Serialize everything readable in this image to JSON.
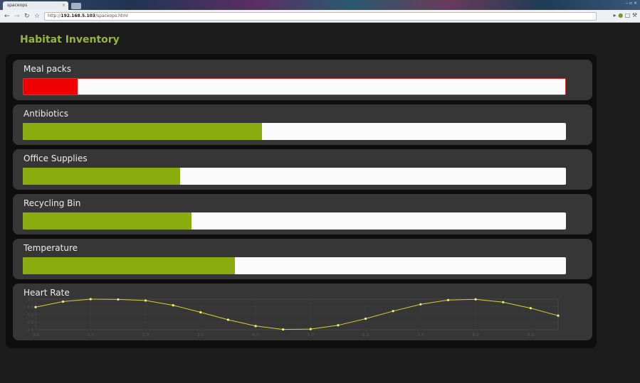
{
  "browser": {
    "tab_title": "spaceops",
    "tab_close": "×",
    "url_prefix": "http://",
    "url_host": "192.168.5.103",
    "url_path": "/spaceops.html",
    "window_controls": "– ▫ ×"
  },
  "page": {
    "title": "Habitat Inventory"
  },
  "colors": {
    "ok": "#8bac0e",
    "alert": "#f00000",
    "accent_title": "#97b53c",
    "line": "#d4d423"
  },
  "gauges": [
    {
      "label": "Meal packs",
      "level_pct": 10,
      "status": "alert"
    },
    {
      "label": "Antibiotics",
      "level_pct": 44,
      "status": "ok"
    },
    {
      "label": "Office Supplies",
      "level_pct": 29,
      "status": "ok"
    },
    {
      "label": "Recycling Bin",
      "level_pct": 31,
      "status": "ok"
    },
    {
      "label": "Temperature",
      "level_pct": 39,
      "status": "ok"
    }
  ],
  "heart_rate": {
    "label": "Heart Rate",
    "chart_data": {
      "type": "line",
      "x": [
        0,
        0.5,
        1.0,
        1.5,
        2.0,
        2.5,
        3.0,
        3.5,
        4.0,
        4.5,
        5.0,
        5.5,
        6.0,
        6.5,
        7.0,
        7.5,
        8.0,
        8.5,
        9.0,
        9.5
      ],
      "y": [
        0.48,
        0.84,
        1.0,
        0.98,
        0.91,
        0.6,
        0.14,
        -0.35,
        -0.76,
        -0.98,
        -0.96,
        -0.71,
        -0.28,
        0.22,
        0.66,
        0.94,
        0.99,
        0.8,
        0.41,
        -0.08
      ],
      "xticks": [
        "0.0",
        "1.0",
        "2.0",
        "3.0",
        "4.0",
        "5.0",
        "6.0",
        "7.0",
        "8.0",
        "9.0"
      ],
      "yticks": [
        "1.0",
        "0.5",
        "0.0",
        "-0.5",
        "-1.0"
      ],
      "xlim": [
        0,
        9.5
      ],
      "ylim": [
        -1,
        1
      ],
      "grid": true
    }
  }
}
